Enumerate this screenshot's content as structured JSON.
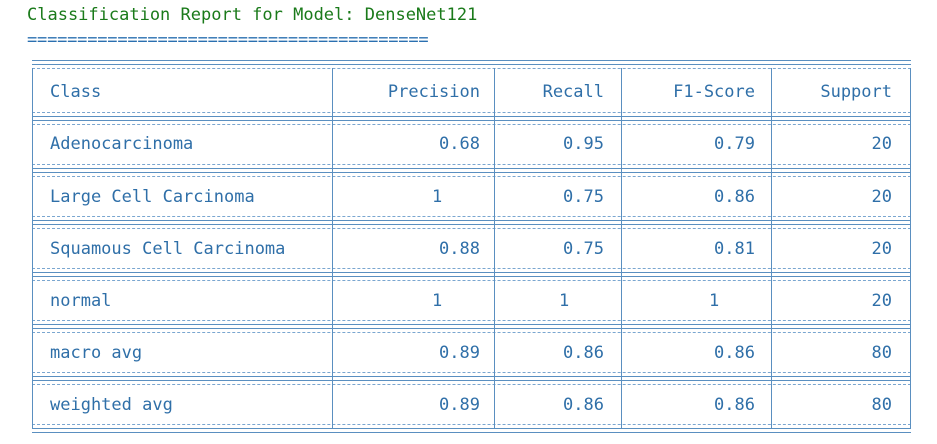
{
  "report": {
    "title": "Classification Report for Model: DenseNet121",
    "rule": "========================================"
  },
  "table": {
    "headers": {
      "class": "Class",
      "precision": "Precision",
      "recall": "Recall",
      "f1": "F1-Score",
      "support": "Support"
    },
    "rows": [
      {
        "class": "Adenocarcinoma",
        "precision": "0.68",
        "recall": "0.95",
        "f1": "0.79",
        "support": "20"
      },
      {
        "class": "Large Cell Carcinoma",
        "precision": "1",
        "recall": "0.75",
        "f1": "0.86",
        "support": "20"
      },
      {
        "class": "Squamous Cell Carcinoma",
        "precision": "0.88",
        "recall": "0.75",
        "f1": "0.81",
        "support": "20"
      },
      {
        "class": "normal",
        "precision": "1",
        "recall": "1",
        "f1": "1",
        "support": "20"
      },
      {
        "class": "macro avg",
        "precision": "0.89",
        "recall": "0.86",
        "f1": "0.86",
        "support": "80"
      },
      {
        "class": "weighted avg",
        "precision": "0.89",
        "recall": "0.86",
        "f1": "0.86",
        "support": "80"
      }
    ]
  },
  "colors": {
    "title": "#1a7a1a",
    "text": "#2f6fa8",
    "rule": "#5a8fc0"
  }
}
